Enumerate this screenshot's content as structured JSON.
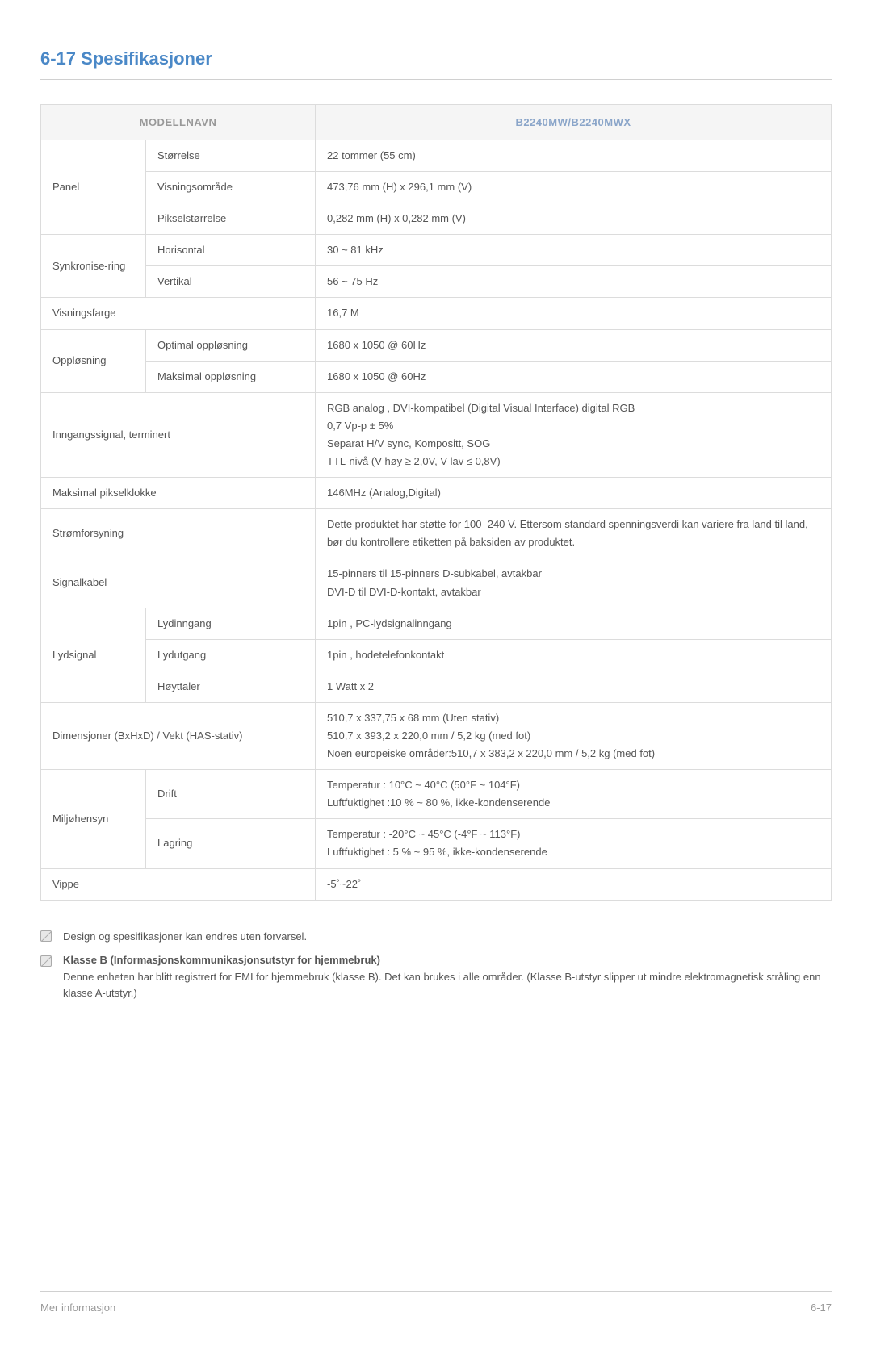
{
  "section_title": "6-17  Spesifikasjoner",
  "header": {
    "col1": "MODELLNAVN",
    "col2": "B2240MW/B2240MWX"
  },
  "panel": {
    "group": "Panel",
    "rows": [
      {
        "label": "Størrelse",
        "value": "22 tommer (55 cm)"
      },
      {
        "label": "Visningsområde",
        "value": "473,76 mm (H) x 296,1 mm (V)"
      },
      {
        "label": "Pikselstørrelse",
        "value": "0,282 mm (H) x 0,282 mm (V)"
      }
    ]
  },
  "sync": {
    "group": "Synkronise-ring",
    "rows": [
      {
        "label": "Horisontal",
        "value": "30 ~ 81 kHz"
      },
      {
        "label": "Vertikal",
        "value": "56 ~ 75 Hz"
      }
    ]
  },
  "display_color": {
    "label": "Visningsfarge",
    "value": "16,7 M"
  },
  "resolution": {
    "group": "Oppløsning",
    "rows": [
      {
        "label": "Optimal oppløsning",
        "value": "1680 x 1050 @ 60Hz"
      },
      {
        "label": "Maksimal oppløsning",
        "value": "1680 x 1050 @ 60Hz"
      }
    ]
  },
  "input_signal": {
    "label": "Inngangssignal, terminert",
    "lines": [
      "RGB analog , DVI-kompatibel (Digital Visual Interface) digital RGB",
      "0,7 Vp-p ± 5%",
      "Separat H/V sync, Kompositt, SOG",
      "TTL-nivå (V høy ≥ 2,0V, V lav ≤ 0,8V)"
    ]
  },
  "pixel_clock": {
    "label": "Maksimal pikselklokke",
    "value": "146MHz (Analog,Digital)"
  },
  "power": {
    "label": "Strømforsyning",
    "value": "Dette produktet har støtte for 100–240 V. Ettersom standard spenningsverdi kan variere fra land til land, bør du kontrollere etiketten på baksiden av produktet."
  },
  "signal_cable": {
    "label": "Signalkabel",
    "lines": [
      "15-pinners til 15-pinners D-subkabel, avtakbar",
      "DVI-D til DVI-D-kontakt, avtakbar"
    ]
  },
  "audio": {
    "group": "Lydsignal",
    "rows": [
      {
        "label": "Lydinngang",
        "value": "1pin , PC-lydsignalinngang"
      },
      {
        "label": "Lydutgang",
        "value": "1pin , hodetelefonkontakt"
      },
      {
        "label": "Høyttaler",
        "value": "1 Watt x 2"
      }
    ]
  },
  "dimensions": {
    "label": "Dimensjoner (BxHxD) / Vekt (HAS-stativ)",
    "lines": [
      "510,7 x 337,75 x 68 mm (Uten stativ)",
      "510,7 x 393,2 x 220,0 mm / 5,2 kg (med fot)",
      "Noen europeiske områder:510,7 x 383,2 x 220,0 mm / 5,2 kg (med fot)"
    ]
  },
  "environment": {
    "group": "Miljøhensyn",
    "rows": [
      {
        "label": "Drift",
        "lines": [
          "Temperatur : 10°C ~ 40°C (50°F ~ 104°F)",
          "Luftfuktighet :10 % ~ 80 %, ikke-kondenserende"
        ]
      },
      {
        "label": "Lagring",
        "lines": [
          "Temperatur : -20°C ~ 45°C (-4°F ~ 113°F)",
          "Luftfuktighet : 5 % ~ 95 %, ikke-kondenserende"
        ]
      }
    ]
  },
  "tilt": {
    "label": "Vippe",
    "value": "-5˚~22˚"
  },
  "notes": {
    "note1": "Design og spesifikasjoner kan endres uten forvarsel.",
    "note2_title": "Klasse B (Informasjonskommunikasjonsutstyr for hjemmebruk)",
    "note2_body": "Denne enheten har blitt registrert for EMI for hjemmebruk (klasse B). Det kan brukes i alle områder. (Klasse B-utstyr slipper ut mindre elektromagnetisk stråling enn klasse A-utstyr.)"
  },
  "footer": {
    "left": "Mer informasjon",
    "right": "6-17"
  }
}
